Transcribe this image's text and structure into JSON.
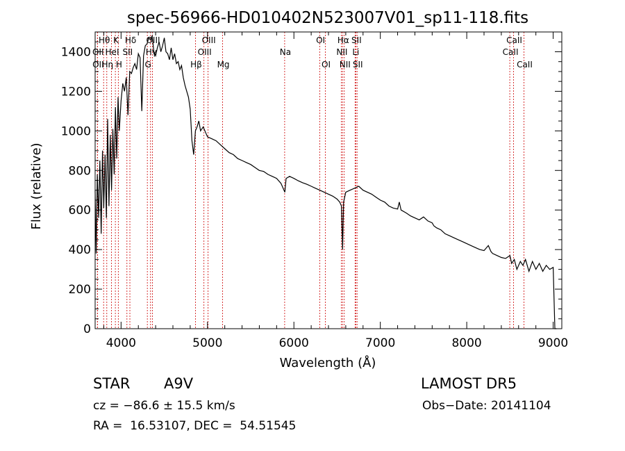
{
  "chart_data": {
    "type": "line",
    "title": "spec-56966-HD010402N523007V01_sp11-118.fits",
    "xlabel": "Wavelength (Å)",
    "ylabel": "Flux (relative)",
    "xlim": [
      3700,
      9100
    ],
    "ylim": [
      0,
      1500
    ],
    "x_ticks": [
      4000,
      5000,
      6000,
      7000,
      8000,
      9000
    ],
    "y_ticks": [
      0,
      200,
      400,
      600,
      800,
      1000,
      1200,
      1400
    ],
    "grid": false,
    "line_color": "#000000",
    "marker_color": "#cc0000",
    "series": [
      {
        "x": [
          3700,
          3712,
          3725,
          3740,
          3755,
          3770,
          3785,
          3800,
          3815,
          3830,
          3845,
          3860,
          3875,
          3890,
          3905,
          3920,
          3935,
          3950,
          3965,
          3980,
          4000,
          4020,
          4040,
          4060,
          4080,
          4100,
          4120,
          4140,
          4160,
          4180,
          4200,
          4220,
          4240,
          4260,
          4280,
          4300,
          4320,
          4340,
          4360,
          4380,
          4400,
          4420,
          4440,
          4460,
          4480,
          4500,
          4520,
          4540,
          4560,
          4580,
          4600,
          4620,
          4640,
          4660,
          4680,
          4700,
          4720,
          4740,
          4760,
          4780,
          4800,
          4820,
          4840,
          4860,
          4880,
          4900,
          4920,
          4950,
          4980,
          5000,
          5050,
          5100,
          5150,
          5200,
          5250,
          5300,
          5350,
          5400,
          5450,
          5500,
          5550,
          5600,
          5650,
          5700,
          5750,
          5800,
          5850,
          5895,
          5910,
          5950,
          6000,
          6050,
          6100,
          6150,
          6200,
          6250,
          6300,
          6350,
          6400,
          6450,
          6500,
          6530,
          6550,
          6563,
          6575,
          6600,
          6650,
          6700,
          6750,
          6800,
          6850,
          6900,
          6950,
          7000,
          7050,
          7100,
          7150,
          7200,
          7220,
          7240,
          7300,
          7350,
          7400,
          7450,
          7500,
          7550,
          7600,
          7620,
          7650,
          7700,
          7750,
          7800,
          7850,
          7900,
          7950,
          8000,
          8050,
          8100,
          8150,
          8200,
          8250,
          8280,
          8300,
          8350,
          8400,
          8450,
          8500,
          8520,
          8550,
          8580,
          8620,
          8650,
          8680,
          8720,
          8760,
          8800,
          8840,
          8880,
          8920,
          8960,
          9000,
          9020,
          9040
        ],
        "y": [
          700,
          380,
          780,
          560,
          850,
          480,
          900,
          610,
          880,
          560,
          1060,
          620,
          980,
          700,
          1010,
          780,
          1120,
          860,
          1170,
          1000,
          1150,
          1240,
          1200,
          1270,
          1080,
          1300,
          1290,
          1320,
          1340,
          1310,
          1390,
          1370,
          1100,
          1380,
          1430,
          1440,
          1470,
          1460,
          1480,
          1400,
          1380,
          1420,
          1450,
          1400,
          1430,
          1470,
          1400,
          1390,
          1360,
          1420,
          1360,
          1390,
          1340,
          1350,
          1310,
          1330,
          1270,
          1230,
          1200,
          1170,
          1110,
          950,
          880,
          1000,
          1020,
          1050,
          1000,
          1020,
          990,
          970,
          960,
          950,
          930,
          910,
          890,
          880,
          860,
          850,
          840,
          830,
          815,
          800,
          795,
          780,
          770,
          760,
          735,
          690,
          760,
          770,
          760,
          748,
          738,
          730,
          720,
          710,
          700,
          690,
          680,
          670,
          655,
          640,
          620,
          400,
          640,
          690,
          700,
          710,
          720,
          700,
          690,
          680,
          665,
          650,
          640,
          620,
          610,
          605,
          640,
          600,
          585,
          570,
          560,
          550,
          565,
          545,
          535,
          520,
          510,
          500,
          480,
          470,
          460,
          450,
          440,
          430,
          420,
          410,
          400,
          395,
          420,
          390,
          380,
          370,
          360,
          355,
          370,
          330,
          350,
          300,
          340,
          320,
          350,
          290,
          340,
          300,
          330,
          290,
          320,
          300,
          310,
          0,
          0
        ]
      }
    ],
    "line_markers": [
      {
        "x": 3798,
        "label": "Hθ",
        "row": 1
      },
      {
        "x": 3726,
        "label": "OII",
        "row": 2
      },
      {
        "x": 3727,
        "label": "OII",
        "row": 3
      },
      {
        "x": 3835,
        "label": "Hη",
        "row": 3
      },
      {
        "x": 3889,
        "label": "HeI",
        "row": 2
      },
      {
        "x": 3934,
        "label": "K",
        "row": 1
      },
      {
        "x": 3968,
        "label": "H",
        "row": 3
      },
      {
        "x": 4068,
        "label": "SII",
        "row": 2
      },
      {
        "x": 4102,
        "label": "Hδ",
        "row": 1
      },
      {
        "x": 4304,
        "label": "G",
        "row": 3
      },
      {
        "x": 4341,
        "label": "Hγ",
        "row": 2
      },
      {
        "x": 4363,
        "label": "OIII",
        "row": 1
      },
      {
        "x": 4861,
        "label": "Hβ",
        "row": 3
      },
      {
        "x": 4959,
        "label": "OIII",
        "row": 2
      },
      {
        "x": 5007,
        "label": "OIII",
        "row": 1
      },
      {
        "x": 5175,
        "label": "Mg",
        "row": 3
      },
      {
        "x": 5893,
        "label": "Na",
        "row": 2
      },
      {
        "x": 6300,
        "label": "OI",
        "row": 1
      },
      {
        "x": 6364,
        "label": "OI",
        "row": 3
      },
      {
        "x": 6548,
        "label": "NII",
        "row": 2
      },
      {
        "x": 6563,
        "label": "Hα",
        "row": 1
      },
      {
        "x": 6583,
        "label": "NII",
        "row": 3
      },
      {
        "x": 6708,
        "label": "Li",
        "row": 2
      },
      {
        "x": 6716,
        "label": "SII",
        "row": 1
      },
      {
        "x": 6731,
        "label": "SII",
        "row": 3
      },
      {
        "x": 8498,
        "label": "CaII",
        "row": 2
      },
      {
        "x": 8542,
        "label": "CaII",
        "row": 1
      },
      {
        "x": 8662,
        "label": "CaII",
        "row": 3
      }
    ]
  },
  "info": {
    "object_type": "STAR",
    "spectral_class": "A9V",
    "survey": "LAMOST DR5",
    "cz": "cz = −86.6 ± 15.5 km/s",
    "obs_date": "Obs−Date: 20141104",
    "coords": "RA =  16.53107, DEC =  54.51545"
  }
}
